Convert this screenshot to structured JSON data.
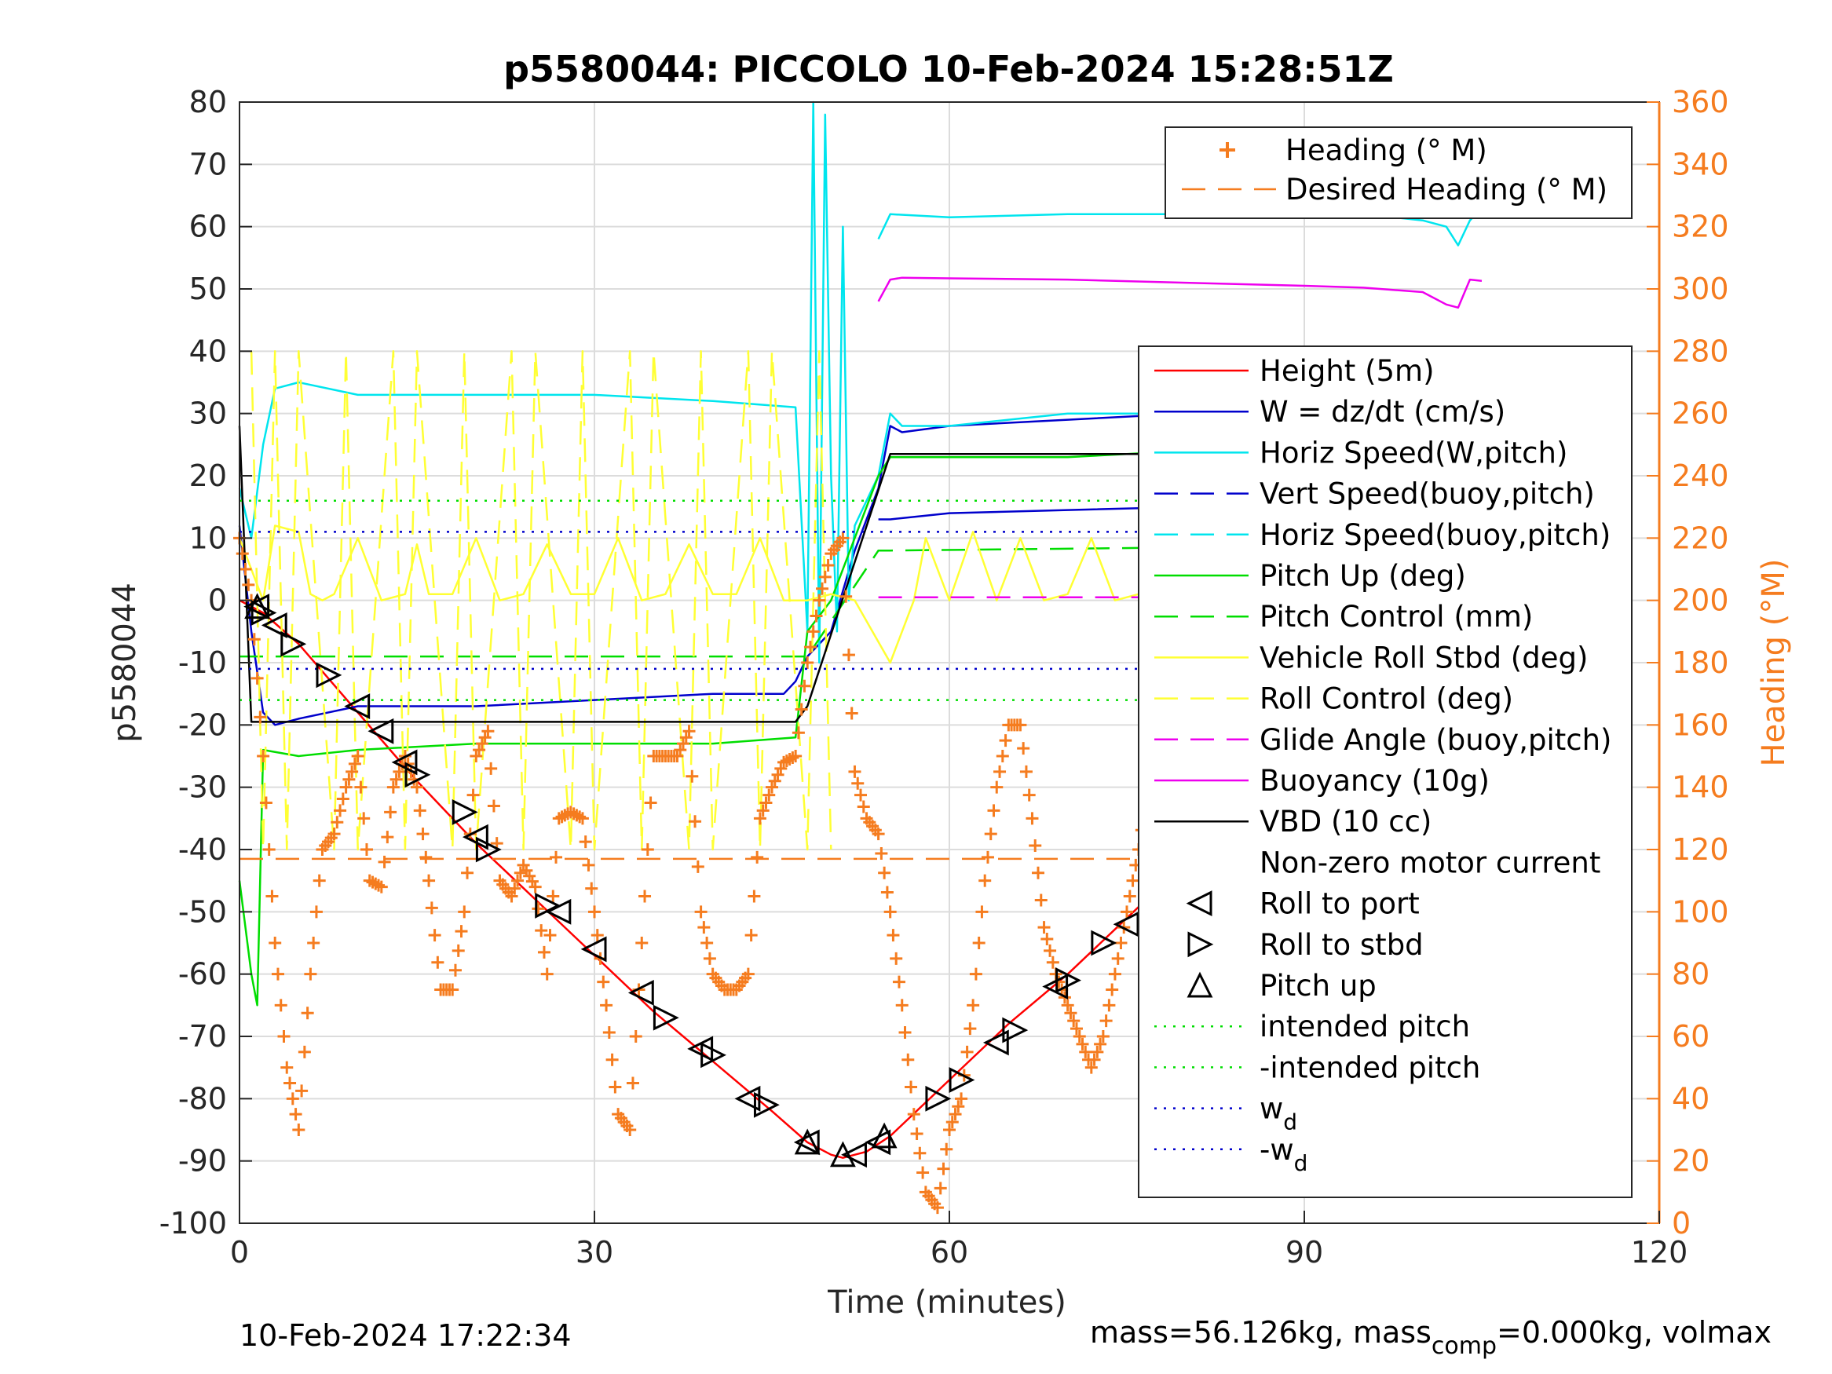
{
  "chart_data": {
    "type": "line",
    "title": "p5580044: PICCOLO 10-Feb-2024 15:28:51Z",
    "xlabel": "Time (minutes)",
    "ylabel": "p5580044",
    "y2label": "Heading (°M)",
    "xlim": [
      0,
      120
    ],
    "ylim": [
      -100,
      80
    ],
    "y2lim": [
      0,
      360
    ],
    "xticks": [
      "0",
      "30",
      "60",
      "90",
      "120"
    ],
    "yticks": [
      "80",
      "70",
      "60",
      "50",
      "40",
      "30",
      "20",
      "10",
      "0",
      "-10",
      "-20",
      "-30",
      "-40",
      "-50",
      "-60",
      "-70",
      "-80",
      "-90",
      "-100"
    ],
    "y2ticks": [
      "360",
      "340",
      "320",
      "300",
      "280",
      "260",
      "240",
      "220",
      "200",
      "180",
      "160",
      "140",
      "120",
      "100",
      "80",
      "60",
      "40",
      "20",
      "0"
    ],
    "grid": true,
    "legend_top": [
      {
        "label": "Heading (° M)",
        "color": "#f57c1f",
        "style": "plus"
      },
      {
        "label": "Desired Heading (° M)",
        "color": "#f57c1f",
        "style": "dash"
      }
    ],
    "legend_main": [
      {
        "label": "Height (5m)",
        "color": "#ff0000",
        "style": "solid"
      },
      {
        "label": "W = dz/dt (cm/s)",
        "color": "#0000cc",
        "style": "solid"
      },
      {
        "label": "Horiz Speed(W,pitch)",
        "color": "#00e5ee",
        "style": "solid"
      },
      {
        "label": "Vert Speed(buoy,pitch)",
        "color": "#0000cc",
        "style": "dash"
      },
      {
        "label": "Horiz Speed(buoy,pitch)",
        "color": "#00e5ee",
        "style": "dash"
      },
      {
        "label": "Pitch Up (deg)",
        "color": "#00dd00",
        "style": "solid"
      },
      {
        "label": "Pitch Control (mm)",
        "color": "#00dd00",
        "style": "dash"
      },
      {
        "label": "Vehicle Roll Stbd (deg)",
        "color": "#ffff33",
        "style": "solid"
      },
      {
        "label": "Roll Control (deg)",
        "color": "#ffff33",
        "style": "dash"
      },
      {
        "label": "Glide Angle (buoy,pitch)",
        "color": "#ee00ee",
        "style": "dash"
      },
      {
        "label": "Buoyancy (10g)",
        "color": "#ee00ee",
        "style": "solid"
      },
      {
        "label": "VBD (10 cc)",
        "color": "#000000",
        "style": "solid"
      },
      {
        "label": "Non-zero motor current",
        "color": "#000000",
        "style": "none"
      },
      {
        "label": "Roll to port",
        "color": "#000000",
        "style": "tri-left"
      },
      {
        "label": "Roll to stbd",
        "color": "#000000",
        "style": "tri-right"
      },
      {
        "label": "Pitch up",
        "color": "#000000",
        "style": "tri-up"
      },
      {
        "label": "intended pitch",
        "color": "#00dd00",
        "style": "dot"
      },
      {
        "label": "-intended pitch",
        "color": "#00dd00",
        "style": "dot"
      },
      {
        "label": "w",
        "sub": "d",
        "color": "#0000cc",
        "style": "dot"
      },
      {
        "label": "-w",
        "sub": "d",
        "color": "#0000cc",
        "style": "dot"
      }
    ],
    "series": [
      {
        "name": "Height (5m)",
        "color": "#ff0000",
        "axis": "left",
        "x": [
          0,
          1,
          2,
          5,
          10,
          15,
          20,
          25,
          30,
          35,
          40,
          45,
          48,
          50,
          51,
          53,
          55,
          60,
          65,
          70,
          75,
          80,
          85,
          90,
          95,
          100,
          105
        ],
        "y": [
          0,
          -1,
          -2,
          -7,
          -18,
          -29,
          -39,
          -48,
          -57,
          -66,
          -74,
          -82,
          -87,
          -89,
          -89.5,
          -88.5,
          -86,
          -77,
          -68,
          -60,
          -51,
          -42,
          -33,
          -24,
          -15,
          -7,
          0
        ]
      },
      {
        "name": "W = dz/dt (cm/s)",
        "color": "#0000cc",
        "axis": "left",
        "x": [
          0,
          1,
          2,
          3,
          5,
          10,
          20,
          30,
          40,
          46,
          47,
          48,
          50,
          52,
          54,
          55,
          56,
          60,
          70,
          80,
          90,
          95,
          100,
          102,
          104,
          105
        ],
        "y": [
          12,
          -5,
          -18,
          -20,
          -19,
          -17,
          -17,
          -16,
          -15,
          -15,
          -13,
          -9,
          -5,
          8,
          18,
          28,
          27,
          28,
          29,
          30,
          30,
          30,
          31,
          32,
          31,
          35
        ]
      },
      {
        "name": "Horiz Speed(W,pitch)",
        "color": "#00e5ee",
        "axis": "left",
        "x": [
          0,
          1,
          2,
          3,
          5,
          10,
          20,
          30,
          40,
          47,
          48,
          48.5,
          49,
          49.5,
          50,
          50.5,
          51,
          51.5,
          52,
          54,
          55,
          56,
          60,
          70,
          80,
          90,
          100,
          102,
          104,
          105
        ],
        "y": [
          18,
          10,
          25,
          34,
          35,
          33,
          33,
          33,
          32,
          31,
          -5,
          80,
          -10,
          78,
          20,
          -5,
          60,
          0,
          12,
          20,
          30,
          28,
          28,
          30,
          30,
          30,
          27,
          22,
          30,
          28
        ]
      },
      {
        "name": "Vert Speed(buoy,pitch)",
        "color": "#0000cc",
        "axis": "left",
        "x": [
          54,
          55,
          60,
          70,
          80,
          90,
          95,
          98,
          100,
          103,
          105
        ],
        "y": [
          13,
          13,
          14,
          14.5,
          15,
          16,
          15.5,
          15,
          14,
          12,
          15
        ]
      },
      {
        "name": "Horiz Speed(buoy,pitch)",
        "color": "#00e5ee",
        "axis": "left",
        "x": [
          54,
          55,
          60,
          70,
          80,
          90,
          95,
          100,
          102,
          103,
          104,
          105
        ],
        "y": [
          58,
          62,
          61.5,
          62,
          62,
          62,
          62,
          61,
          60,
          57,
          61,
          63
        ]
      },
      {
        "name": "Pitch Up (deg)",
        "color": "#00dd00",
        "axis": "left",
        "x": [
          0,
          1,
          1.5,
          2,
          5,
          10,
          20,
          30,
          40,
          47,
          48,
          50,
          52,
          54,
          55,
          56,
          60,
          70,
          80,
          90,
          100,
          104,
          105
        ],
        "y": [
          -45,
          -60,
          -65,
          -24,
          -25,
          -24,
          -23,
          -23,
          -23,
          -22,
          -5,
          0,
          10,
          20,
          23,
          23,
          23,
          23,
          24,
          24,
          24,
          22,
          24
        ]
      },
      {
        "name": "Pitch Control (mm)",
        "color": "#00dd00",
        "axis": "left",
        "dash": true,
        "x": [
          0,
          47,
          48,
          54,
          55,
          105
        ],
        "y": [
          -9,
          -9,
          -9,
          8,
          8,
          9
        ]
      },
      {
        "name": "Vehicle Roll Stbd (deg)",
        "color": "#ffff33",
        "axis": "left",
        "x": [
          0,
          2,
          3,
          5,
          6,
          7,
          8,
          10,
          12,
          14,
          15,
          16,
          18,
          20,
          22,
          24,
          26,
          28,
          30,
          32,
          34,
          36,
          38,
          40,
          42,
          44,
          46,
          48,
          50,
          52,
          55,
          57,
          58,
          60,
          62,
          64,
          66,
          68,
          70,
          72,
          74,
          76,
          78,
          80,
          82,
          84,
          86,
          88,
          90,
          92,
          94,
          96,
          98,
          100,
          102,
          104,
          105
        ],
        "y": [
          10,
          0,
          12,
          11,
          1,
          0,
          1,
          10,
          0,
          1,
          9,
          1,
          1,
          10,
          0,
          1,
          9,
          1,
          1,
          10,
          0,
          1,
          9,
          1,
          1,
          10,
          0,
          0,
          1,
          0,
          -10,
          0,
          10,
          0,
          11,
          0,
          10,
          0,
          1,
          10,
          0,
          1,
          10,
          0,
          0,
          10,
          0,
          1,
          10,
          0,
          1,
          10,
          0,
          1,
          10,
          0,
          0
        ]
      },
      {
        "name": "Roll Control (deg)",
        "color": "#ffff33",
        "axis": "left",
        "dash": true,
        "x": [
          1,
          2,
          3,
          4,
          5,
          8,
          9,
          10,
          13,
          14,
          15,
          18,
          19,
          20,
          23,
          24,
          25,
          28,
          29,
          30,
          33,
          34,
          35,
          38,
          39,
          40,
          43,
          44,
          45,
          48,
          49,
          50
        ],
        "y": [
          40,
          -40,
          40,
          -40,
          40,
          -40,
          40,
          -40,
          40,
          -40,
          40,
          -40,
          40,
          -40,
          40,
          -40,
          40,
          -40,
          40,
          -40,
          40,
          -40,
          40,
          -40,
          40,
          -40,
          40,
          -40,
          40,
          -40,
          40,
          -40
        ]
      },
      {
        "name": "Glide Angle (buoy,pitch)",
        "color": "#ee00ee",
        "axis": "left",
        "dash": true,
        "x": [
          54,
          105
        ],
        "y": [
          0.5,
          0.5
        ]
      },
      {
        "name": "Buoyancy (10g)",
        "color": "#ee00ee",
        "axis": "left",
        "x": [
          54,
          55,
          56,
          60,
          70,
          80,
          90,
          95,
          100,
          102,
          103,
          104,
          105
        ],
        "y": [
          48,
          51.5,
          51.8,
          51.7,
          51.5,
          51,
          50.5,
          50.2,
          49.5,
          47.5,
          47,
          51.5,
          51.3
        ]
      },
      {
        "name": "VBD (10 cc)",
        "color": "#000000",
        "axis": "left",
        "x": [
          0,
          1,
          2,
          47,
          48,
          55,
          56,
          105
        ],
        "y": [
          28,
          -19.5,
          -19.5,
          -19.5,
          -17,
          23.5,
          23.5,
          23.5
        ]
      },
      {
        "name": "Heading (° M)",
        "color": "#f57c1f",
        "axis": "right",
        "style": "plus",
        "x": [
          0,
          1,
          2,
          3,
          4,
          5,
          6,
          7,
          8,
          9,
          10,
          11,
          12,
          13,
          14,
          15,
          16,
          17,
          18,
          19,
          20,
          21,
          22,
          23,
          24,
          25,
          26,
          27,
          28,
          29,
          30,
          31,
          32,
          33,
          34,
          35,
          36,
          37,
          38,
          39,
          40,
          41,
          42,
          43,
          44,
          45,
          46,
          47,
          48,
          49,
          50,
          51,
          52,
          53,
          54,
          55,
          56,
          57,
          58,
          59,
          60,
          61,
          62,
          63,
          64,
          65,
          66,
          67,
          68,
          69,
          70,
          71,
          72,
          73,
          74,
          75,
          76,
          77,
          78,
          79,
          80,
          81,
          82,
          83,
          84,
          85,
          86,
          87,
          88,
          89,
          90,
          91,
          92,
          93,
          94,
          95,
          96,
          97,
          98,
          99,
          100,
          101,
          102,
          103,
          104,
          105
        ],
        "y": [
          220,
          200,
          150,
          90,
          50,
          30,
          80,
          120,
          125,
          140,
          150,
          110,
          108,
          140,
          150,
          140,
          110,
          75,
          75,
          100,
          150,
          158,
          110,
          105,
          115,
          108,
          80,
          130,
          132,
          130,
          100,
          70,
          35,
          30,
          90,
          150,
          150,
          150,
          158,
          100,
          80,
          75,
          75,
          80,
          130,
          140,
          148,
          150,
          180,
          200,
          215,
          220,
          145,
          130,
          125,
          100,
          70,
          35,
          10,
          5,
          30,
          40,
          70,
          110,
          140,
          160,
          160,
          130,
          95,
          80,
          70,
          60,
          50,
          60,
          80,
          100,
          120,
          145,
          145,
          148,
          155,
          120,
          110,
          90,
          70,
          80,
          100,
          120,
          130,
          140,
          100,
          80,
          80,
          90,
          100,
          130,
          140,
          150,
          160,
          175,
          180,
          190,
          200,
          180,
          100,
          100
        ]
      },
      {
        "name": "Desired Heading (° M)",
        "color": "#f57c1f",
        "axis": "right",
        "dash": true,
        "x": [
          0,
          105
        ],
        "y": [
          117,
          117
        ]
      },
      {
        "name": "intended pitch",
        "color": "#00dd00",
        "axis": "left",
        "dot": true,
        "x": [
          0,
          105
        ],
        "y": [
          16,
          16
        ]
      },
      {
        "name": "-intended pitch",
        "color": "#00dd00",
        "axis": "left",
        "dot": true,
        "x": [
          0,
          105
        ],
        "y": [
          -16,
          -16
        ]
      },
      {
        "name": "w_d",
        "color": "#0000cc",
        "axis": "left",
        "dot": true,
        "x": [
          0,
          105
        ],
        "y": [
          11,
          11
        ]
      },
      {
        "name": "-w_d",
        "color": "#0000cc",
        "axis": "left",
        "dot": true,
        "x": [
          0,
          105
        ],
        "y": [
          -11,
          -11
        ]
      }
    ],
    "markers": {
      "roll_to_port": {
        "x": [
          1.5,
          3,
          10,
          12,
          14,
          20,
          27,
          30,
          34,
          39,
          43,
          48,
          52,
          54,
          64,
          69,
          75,
          80,
          85,
          91,
          94,
          100
        ],
        "y": [
          -1,
          -4,
          -17,
          -21,
          -26,
          -38,
          -50,
          -56,
          -63,
          -72,
          -80,
          -87,
          -89,
          -87,
          -71,
          -62,
          -52,
          -42,
          -33,
          -23,
          -18,
          -7
        ]
      },
      "roll_to_stbd": {
        "x": [
          2,
          4.5,
          7.5,
          15,
          19,
          21,
          26,
          36,
          40,
          44.5,
          59,
          61,
          65.5,
          70,
          73,
          78,
          86,
          88,
          97,
          101,
          103
        ],
        "y": [
          -2,
          -7,
          -12,
          -28,
          -34,
          -40,
          -49,
          -67,
          -73,
          -81,
          -80,
          -77,
          -69,
          -61,
          -55,
          -47,
          -34,
          -28,
          -13,
          -6,
          -3
        ]
      },
      "pitch_up": {
        "x": [
          1.5,
          48,
          51,
          54.5
        ],
        "y": [
          -1,
          -87,
          -89,
          -86
        ]
      }
    }
  },
  "footer": {
    "timestamp": "10-Feb-2024 17:22:34",
    "mass_prefix": "mass=56.126kg, mass",
    "mass_sub": "comp",
    "mass_suffix": "=0.000kg, volmax"
  }
}
